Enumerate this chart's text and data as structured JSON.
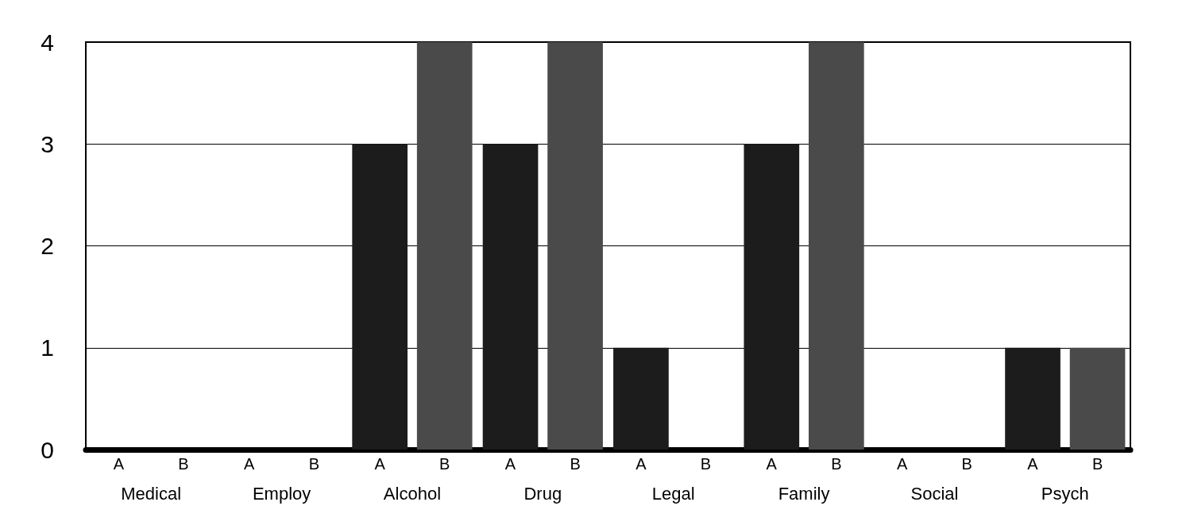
{
  "chart_data": {
    "type": "bar",
    "categories": [
      "Medical",
      "Employ",
      "Alcohol",
      "Drug",
      "Legal",
      "Family",
      "Social",
      "Psych"
    ],
    "series": [
      {
        "name": "A",
        "color": "#1c1c1c",
        "values": [
          0,
          0,
          3,
          3,
          1,
          3,
          0,
          1
        ]
      },
      {
        "name": "B",
        "color": "#4a4a4a",
        "values": [
          0,
          0,
          4,
          4,
          0,
          4,
          0,
          1
        ]
      }
    ],
    "ylim": [
      0,
      4
    ],
    "yticks": [
      0,
      1,
      2,
      3,
      4
    ],
    "grid": "y",
    "legend": false
  }
}
